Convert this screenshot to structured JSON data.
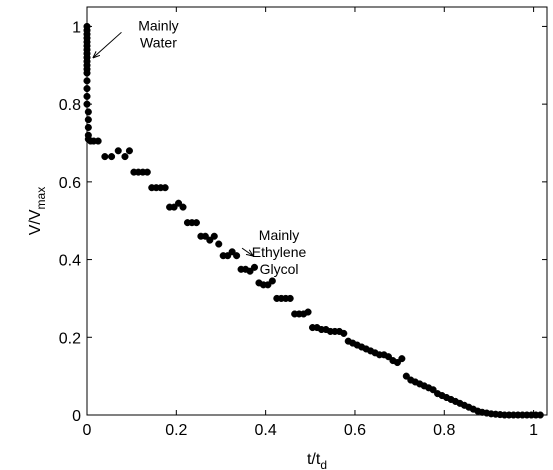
{
  "chart_data": {
    "type": "scatter",
    "xlabel": {
      "main": "t/t",
      "sub": "d"
    },
    "ylabel": {
      "main": "V/V",
      "sub": "max"
    },
    "xlim": [
      0,
      1.03
    ],
    "ylim": [
      0,
      1.05
    ],
    "xticks": [
      0,
      0.2,
      0.4,
      0.6,
      0.8,
      1
    ],
    "yticks": [
      0,
      0.2,
      0.4,
      0.6,
      0.8,
      1
    ],
    "xtick_labels": [
      "0",
      "0.2",
      "0.4",
      "0.6",
      "0.8",
      "1"
    ],
    "ytick_labels": [
      "0",
      "0.2",
      "0.4",
      "0.6",
      "0.8",
      "1"
    ],
    "grid": false,
    "marker": "filled-circle",
    "marker_color": "#000000",
    "annotations": [
      {
        "lines": [
          "Mainly",
          "Water"
        ],
        "arrow_to": [
          0.003,
          0.92
        ],
        "label_at": [
          0.16,
          0.99
        ]
      },
      {
        "lines": [
          "Mainly",
          "Ethylene",
          "Glycol"
        ],
        "arrow_to": [
          0.36,
          0.41
        ],
        "label_at": [
          0.43,
          0.45
        ]
      }
    ],
    "series": [
      {
        "x": [
          0.0,
          0.0,
          0.0,
          0.0,
          0.0,
          0.0,
          0.0,
          0.0,
          0.0,
          0.0,
          0.0,
          0.0,
          0.0,
          0.0,
          0.0,
          0.0,
          0.0,
          0.003,
          0.003,
          0.003,
          0.003,
          0.003,
          0.008,
          0.015,
          0.025,
          0.04,
          0.055,
          0.07,
          0.085,
          0.095,
          0.105,
          0.115,
          0.125,
          0.135,
          0.145,
          0.155,
          0.165,
          0.175,
          0.185,
          0.195,
          0.205,
          0.215,
          0.225,
          0.235,
          0.245,
          0.255,
          0.265,
          0.275,
          0.285,
          0.295,
          0.305,
          0.315,
          0.325,
          0.335,
          0.345,
          0.355,
          0.365,
          0.375,
          0.385,
          0.395,
          0.405,
          0.415,
          0.425,
          0.435,
          0.445,
          0.455,
          0.465,
          0.475,
          0.485,
          0.495,
          0.505,
          0.515,
          0.525,
          0.535,
          0.545,
          0.555,
          0.565,
          0.575,
          0.585,
          0.595,
          0.605,
          0.615,
          0.625,
          0.635,
          0.645,
          0.655,
          0.665,
          0.675,
          0.685,
          0.695,
          0.705,
          0.715,
          0.725,
          0.735,
          0.745,
          0.755,
          0.765,
          0.775,
          0.785,
          0.795,
          0.805,
          0.815,
          0.825,
          0.835,
          0.845,
          0.855,
          0.865,
          0.875,
          0.885,
          0.895,
          0.905,
          0.915,
          0.925,
          0.935,
          0.945,
          0.955,
          0.965,
          0.975,
          0.985,
          0.995,
          1.005,
          1.015
        ],
        "y": [
          1.0,
          0.99,
          0.98,
          0.97,
          0.96,
          0.95,
          0.94,
          0.93,
          0.92,
          0.91,
          0.9,
          0.89,
          0.88,
          0.86,
          0.84,
          0.82,
          0.8,
          0.78,
          0.76,
          0.74,
          0.72,
          0.71,
          0.705,
          0.705,
          0.705,
          0.665,
          0.665,
          0.68,
          0.665,
          0.68,
          0.625,
          0.625,
          0.625,
          0.625,
          0.585,
          0.585,
          0.585,
          0.585,
          0.535,
          0.535,
          0.545,
          0.535,
          0.495,
          0.495,
          0.495,
          0.46,
          0.46,
          0.45,
          0.46,
          0.44,
          0.41,
          0.41,
          0.42,
          0.41,
          0.375,
          0.375,
          0.37,
          0.38,
          0.34,
          0.335,
          0.335,
          0.345,
          0.3,
          0.3,
          0.3,
          0.3,
          0.26,
          0.26,
          0.26,
          0.265,
          0.225,
          0.225,
          0.22,
          0.22,
          0.215,
          0.215,
          0.215,
          0.21,
          0.19,
          0.185,
          0.18,
          0.175,
          0.17,
          0.165,
          0.16,
          0.155,
          0.155,
          0.15,
          0.14,
          0.135,
          0.145,
          0.1,
          0.09,
          0.085,
          0.08,
          0.075,
          0.07,
          0.065,
          0.055,
          0.05,
          0.045,
          0.04,
          0.035,
          0.03,
          0.025,
          0.02,
          0.015,
          0.01,
          0.007,
          0.005,
          0.003,
          0.002,
          0.001,
          0.0,
          0.0,
          0.0,
          0.0,
          0.0,
          0.0,
          0.0,
          0.0,
          0.0
        ]
      }
    ]
  }
}
